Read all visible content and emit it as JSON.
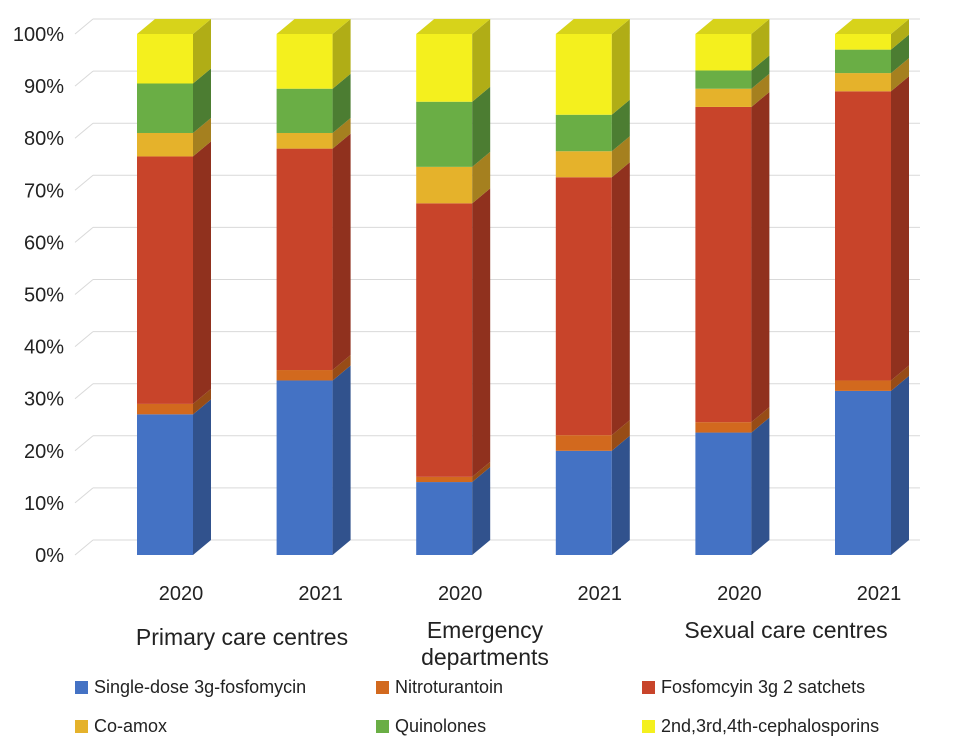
{
  "chart_data": {
    "type": "bar",
    "stacked": true,
    "three_d": true,
    "grid": true,
    "legend_position": "bottom",
    "yunit": "%",
    "ylim": [
      0,
      100
    ],
    "yticks": [
      0,
      10,
      20,
      30,
      40,
      50,
      60,
      70,
      80,
      90,
      100
    ],
    "ytick_labels": [
      "0%",
      "10%",
      "20%",
      "30%",
      "40%",
      "50%",
      "60%",
      "70%",
      "80%",
      "90%",
      "100%"
    ],
    "categories": [
      "2020",
      "2021",
      "2020",
      "2021",
      "2020",
      "2021"
    ],
    "groups": [
      {
        "label": "Primary care centres",
        "label_lines": [
          "Primary care centres"
        ],
        "categories": [
          0,
          1
        ]
      },
      {
        "label": "Emergency departments",
        "label_lines": [
          "Emergency",
          "departments"
        ],
        "categories": [
          2,
          3
        ]
      },
      {
        "label": "Sexual care centres",
        "label_lines": [
          "Sexual care centres"
        ],
        "categories": [
          4,
          5
        ]
      }
    ],
    "series": [
      {
        "name": "Single-dose 3g-fosfomycin",
        "color": "#4472C4",
        "values": [
          27,
          33.5,
          14,
          20,
          23.5,
          31.5
        ]
      },
      {
        "name": "Nitroturantoin",
        "color": "#D2691E",
        "values": [
          2,
          2,
          1,
          3,
          2,
          2
        ]
      },
      {
        "name": "Fosfomcyin 3g 2 satchets",
        "color": "#C8442A",
        "values": [
          47.5,
          42.5,
          52.5,
          49.5,
          60.5,
          55.5
        ]
      },
      {
        "name": "Co-amox",
        "color": "#E5B22B",
        "values": [
          4.5,
          3,
          7,
          5,
          3.5,
          3.5
        ]
      },
      {
        "name": "Quinolones",
        "color": "#6AAE45",
        "values": [
          9.5,
          8.5,
          12.5,
          7,
          3.5,
          4.5
        ]
      },
      {
        "name": "2nd,3rd,4th-cephalosporins",
        "color": "#F4F01E",
        "values": [
          9.5,
          10.5,
          13,
          15.5,
          7,
          3
        ]
      }
    ]
  }
}
